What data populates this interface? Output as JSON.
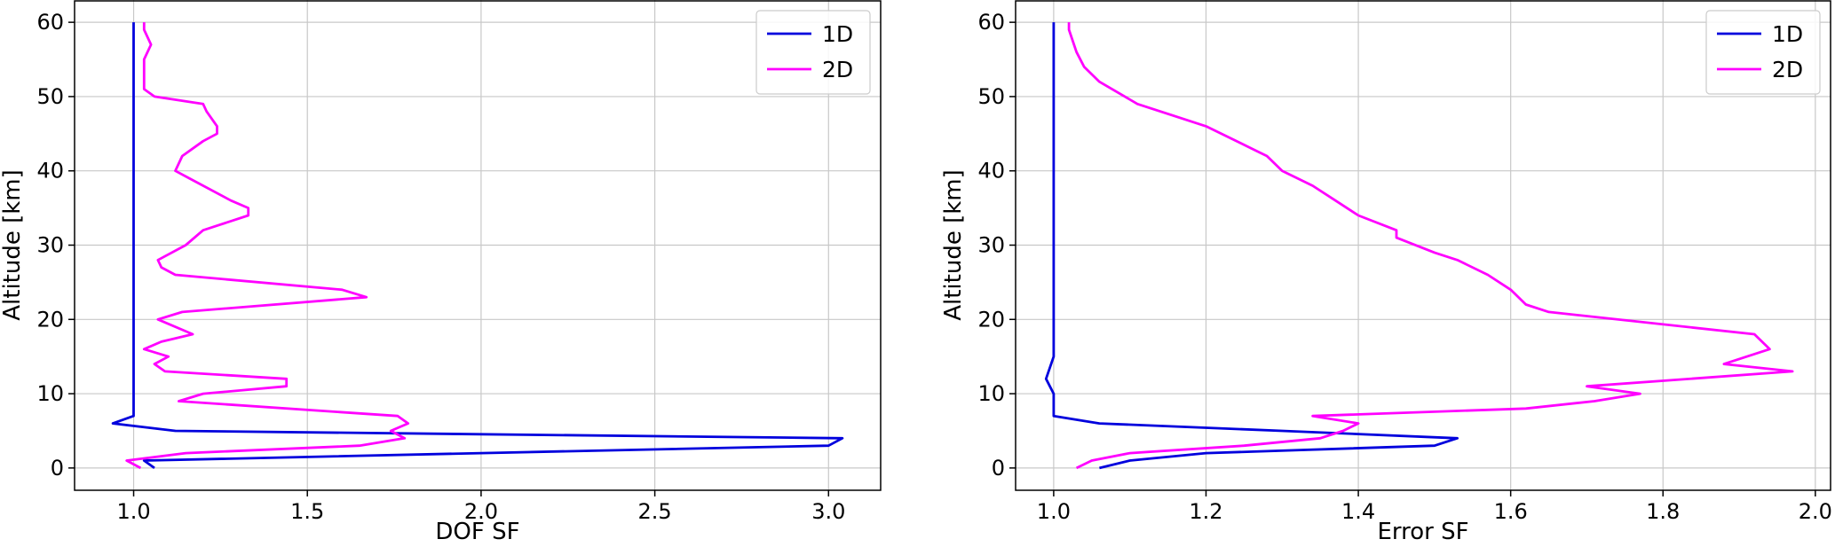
{
  "chart_data": [
    {
      "type": "line",
      "title": "",
      "xlabel": "DOF SF",
      "ylabel": "Altitude [km]",
      "xlim": [
        0.83,
        3.15
      ],
      "ylim": [
        -3,
        63
      ],
      "xticks": [
        1.0,
        1.5,
        2.0,
        2.5,
        3.0
      ],
      "xtick_labels": [
        "1.0",
        "1.5",
        "2.0",
        "2.5",
        "3.0"
      ],
      "yticks": [
        0,
        10,
        20,
        30,
        40,
        50,
        60
      ],
      "ytick_labels": [
        "0",
        "10",
        "20",
        "30",
        "40",
        "50",
        "60"
      ],
      "grid": true,
      "legend_position": "top-right",
      "series": [
        {
          "name": "1D",
          "color": "#0000dd",
          "points": [
            [
              1.06,
              0
            ],
            [
              1.03,
              1
            ],
            [
              2.0,
              2
            ],
            [
              3.0,
              3
            ],
            [
              3.04,
              4
            ],
            [
              1.12,
              5
            ],
            [
              0.94,
              6
            ],
            [
              1.0,
              7
            ],
            [
              1.0,
              8
            ],
            [
              1.0,
              10
            ],
            [
              1.0,
              15
            ],
            [
              1.0,
              20
            ],
            [
              1.0,
              30
            ],
            [
              1.0,
              40
            ],
            [
              1.0,
              50
            ],
            [
              1.0,
              60
            ]
          ]
        },
        {
          "name": "2D",
          "color": "#ff00ff",
          "points": [
            [
              1.02,
              0
            ],
            [
              0.98,
              1
            ],
            [
              1.15,
              2
            ],
            [
              1.65,
              3
            ],
            [
              1.78,
              4
            ],
            [
              1.74,
              5
            ],
            [
              1.79,
              6
            ],
            [
              1.76,
              7
            ],
            [
              1.13,
              9
            ],
            [
              1.2,
              10
            ],
            [
              1.44,
              11
            ],
            [
              1.44,
              12
            ],
            [
              1.09,
              13
            ],
            [
              1.06,
              14
            ],
            [
              1.1,
              15
            ],
            [
              1.03,
              16
            ],
            [
              1.08,
              17
            ],
            [
              1.17,
              18
            ],
            [
              1.07,
              20
            ],
            [
              1.14,
              21
            ],
            [
              1.67,
              23
            ],
            [
              1.6,
              24
            ],
            [
              1.12,
              26
            ],
            [
              1.08,
              27
            ],
            [
              1.07,
              28
            ],
            [
              1.15,
              30
            ],
            [
              1.2,
              32
            ],
            [
              1.33,
              34
            ],
            [
              1.33,
              35
            ],
            [
              1.28,
              36
            ],
            [
              1.16,
              39
            ],
            [
              1.12,
              40
            ],
            [
              1.14,
              42
            ],
            [
              1.2,
              44
            ],
            [
              1.24,
              45
            ],
            [
              1.24,
              46
            ],
            [
              1.21,
              48
            ],
            [
              1.2,
              49
            ],
            [
              1.06,
              50
            ],
            [
              1.03,
              51
            ],
            [
              1.03,
              55
            ],
            [
              1.05,
              57
            ],
            [
              1.03,
              59
            ],
            [
              1.03,
              60
            ]
          ]
        }
      ]
    },
    {
      "type": "line",
      "title": "",
      "xlabel": "Error SF",
      "ylabel": "Altitude [km]",
      "xlim": [
        0.95,
        2.02
      ],
      "ylim": [
        -3,
        63
      ],
      "xticks": [
        1.0,
        1.2,
        1.4,
        1.6,
        1.8,
        2.0
      ],
      "xtick_labels": [
        "1.0",
        "1.2",
        "1.4",
        "1.6",
        "1.8",
        "2.0"
      ],
      "yticks": [
        0,
        10,
        20,
        30,
        40,
        50,
        60
      ],
      "ytick_labels": [
        "0",
        "10",
        "20",
        "30",
        "40",
        "50",
        "60"
      ],
      "grid": true,
      "legend_position": "top-right",
      "series": [
        {
          "name": "1D",
          "color": "#0000dd",
          "points": [
            [
              1.06,
              0
            ],
            [
              1.1,
              1
            ],
            [
              1.2,
              2
            ],
            [
              1.5,
              3
            ],
            [
              1.53,
              4
            ],
            [
              1.3,
              5
            ],
            [
              1.06,
              6
            ],
            [
              1.0,
              7
            ],
            [
              1.0,
              8
            ],
            [
              1.0,
              10
            ],
            [
              0.99,
              12
            ],
            [
              1.0,
              15
            ],
            [
              1.0,
              20
            ],
            [
              1.0,
              30
            ],
            [
              1.0,
              40
            ],
            [
              1.0,
              50
            ],
            [
              1.0,
              60
            ]
          ]
        },
        {
          "name": "2D",
          "color": "#ff00ff",
          "points": [
            [
              1.03,
              0
            ],
            [
              1.05,
              1
            ],
            [
              1.1,
              2
            ],
            [
              1.25,
              3
            ],
            [
              1.35,
              4
            ],
            [
              1.38,
              5
            ],
            [
              1.4,
              6
            ],
            [
              1.34,
              7
            ],
            [
              1.62,
              8
            ],
            [
              1.71,
              9
            ],
            [
              1.77,
              10
            ],
            [
              1.7,
              11
            ],
            [
              1.97,
              13
            ],
            [
              1.88,
              14
            ],
            [
              1.94,
              16
            ],
            [
              1.92,
              18
            ],
            [
              1.65,
              21
            ],
            [
              1.62,
              22
            ],
            [
              1.6,
              24
            ],
            [
              1.57,
              26
            ],
            [
              1.53,
              28
            ],
            [
              1.5,
              29
            ],
            [
              1.45,
              31
            ],
            [
              1.45,
              32
            ],
            [
              1.4,
              34
            ],
            [
              1.37,
              36
            ],
            [
              1.34,
              38
            ],
            [
              1.3,
              40
            ],
            [
              1.28,
              42
            ],
            [
              1.26,
              43
            ],
            [
              1.2,
              46
            ],
            [
              1.11,
              49
            ],
            [
              1.06,
              52
            ],
            [
              1.04,
              54
            ],
            [
              1.03,
              56
            ],
            [
              1.02,
              59
            ],
            [
              1.02,
              60
            ]
          ]
        }
      ]
    }
  ]
}
